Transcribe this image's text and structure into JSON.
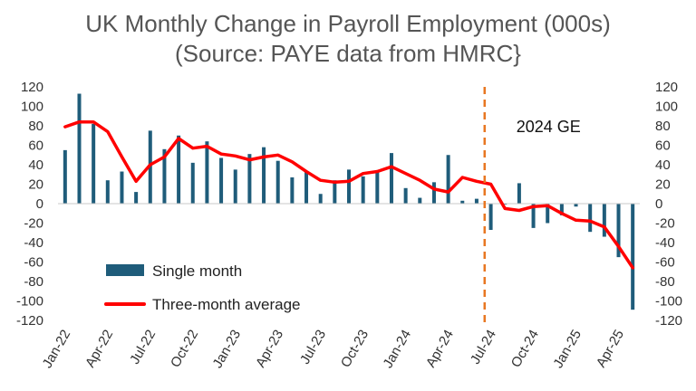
{
  "chart_data": {
    "type": "bar+line",
    "title": "UK Monthly Change in Payroll Employment (000s)",
    "subtitle": "(Source: PAYE data from HMRC}",
    "y_ticks": [
      120,
      100,
      80,
      60,
      40,
      20,
      0,
      -20,
      -40,
      -60,
      -80,
      -100,
      -120
    ],
    "ylim": [
      -120,
      120
    ],
    "x_tick_labels": [
      "Jan-22",
      "Apr-22",
      "Jul-22",
      "Oct-22",
      "Jan-23",
      "Apr-23",
      "Jul-23",
      "Oct-23",
      "Jan-24",
      "Apr-24",
      "Jul-24",
      "Oct-24",
      "Jan-25",
      "Apr-25"
    ],
    "x_tick_every": 3,
    "months": [
      "Jan-22",
      "Feb-22",
      "Mar-22",
      "Apr-22",
      "May-22",
      "Jun-22",
      "Jul-22",
      "Aug-22",
      "Sep-22",
      "Oct-22",
      "Nov-22",
      "Dec-22",
      "Jan-23",
      "Feb-23",
      "Mar-23",
      "Apr-23",
      "May-23",
      "Jun-23",
      "Jul-23",
      "Aug-23",
      "Sep-23",
      "Oct-23",
      "Nov-23",
      "Dec-23",
      "Jan-24",
      "Feb-24",
      "Mar-24",
      "Apr-24",
      "May-24",
      "Jun-24",
      "Jul-24",
      "Aug-24",
      "Sep-24",
      "Oct-24",
      "Nov-24",
      "Dec-24",
      "Jan-25",
      "Feb-25",
      "Mar-25",
      "Apr-25",
      "May-25"
    ],
    "series": [
      {
        "name": "Single month",
        "kind": "bar",
        "color": "#1f5c7a",
        "values": [
          55,
          113,
          82,
          24,
          33,
          12,
          75,
          56,
          70,
          42,
          64,
          47,
          35,
          51,
          58,
          44,
          27,
          33,
          10,
          24,
          35,
          28,
          33,
          52,
          16,
          6,
          22,
          50,
          3,
          5,
          -27,
          -1,
          21,
          -25,
          -20,
          -12,
          -3,
          -29,
          -34,
          -55,
          -109
        ]
      },
      {
        "name": "Three-month average",
        "kind": "line",
        "color": "#ff0000",
        "values": [
          79,
          84,
          84,
          74,
          48,
          23,
          40,
          48,
          67,
          57,
          59,
          51,
          49,
          45,
          48,
          50,
          43,
          33,
          24,
          22,
          23,
          31,
          33,
          38,
          31,
          24,
          15,
          12,
          27,
          23,
          20,
          -5,
          -7,
          -3,
          -2,
          -10,
          -17,
          -18,
          -24,
          -44,
          -66
        ]
      }
    ],
    "annotations": [
      {
        "kind": "vline",
        "color": "#e87722",
        "after_month": "Jun-24",
        "label": "2024 GE"
      }
    ],
    "legend": {
      "position": "bottom-left"
    },
    "grid": false
  }
}
